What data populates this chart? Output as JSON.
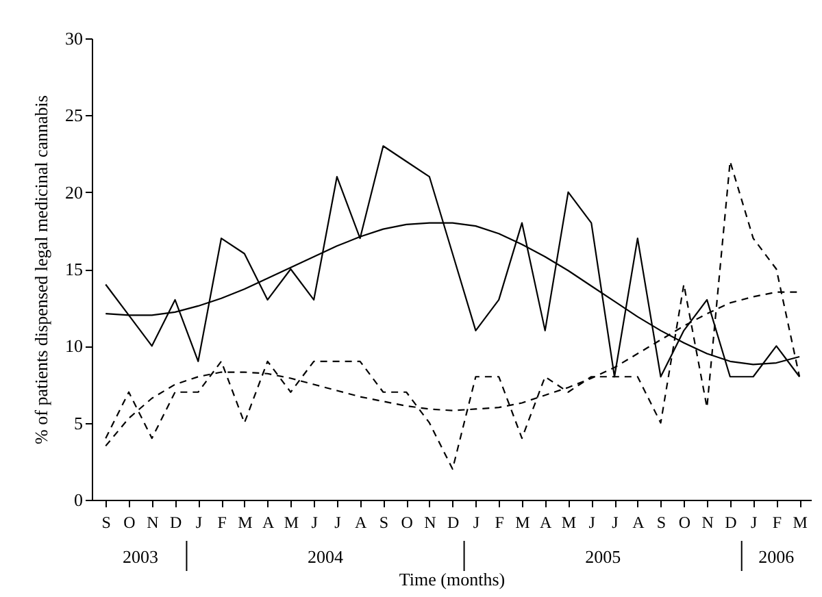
{
  "chart_data": {
    "type": "line",
    "xlabel": "Time (months)",
    "ylabel": "% of patients dispensed legal medicinal cannabis",
    "categories": [
      "S",
      "O",
      "N",
      "D",
      "J",
      "F",
      "M",
      "A",
      "M",
      "J",
      "J",
      "A",
      "S",
      "O",
      "N",
      "D",
      "J",
      "F",
      "M",
      "A",
      "M",
      "J",
      "J",
      "A",
      "S",
      "O",
      "N",
      "D",
      "J",
      "F",
      "M"
    ],
    "series": [
      {
        "color": "#000000",
        "line_style": "solid",
        "values": [
          14,
          12,
          10,
          13,
          9,
          17,
          16,
          13,
          15,
          13,
          21,
          17,
          23,
          22,
          21,
          16,
          11,
          13,
          18,
          11,
          20,
          18,
          8,
          17,
          8,
          11,
          13,
          8,
          8,
          10,
          8
        ]
      },
      {
        "color": "#000000",
        "line_style": "dashed",
        "values": [
          4,
          7,
          4,
          7,
          7,
          9,
          5,
          9,
          7,
          9,
          9,
          9,
          7,
          7,
          5,
          2,
          8,
          8,
          4,
          8,
          7,
          8,
          8,
          8,
          5,
          14,
          6,
          22,
          17,
          15,
          8
        ]
      },
      {
        "type": "line",
        "color": "#000000",
        "line_style": "solid",
        "values": [
          12.1,
          12.0,
          12.0,
          12.2,
          12.6,
          13.1,
          13.7,
          14.4,
          15.1,
          15.8,
          16.5,
          17.1,
          17.6,
          17.9,
          18.0,
          18.0,
          17.8,
          17.3,
          16.6,
          15.8,
          14.9,
          13.9,
          12.9,
          11.9,
          11.0,
          10.2,
          9.5,
          9.0,
          8.8,
          8.9,
          9.3
        ]
      },
      {
        "type": "line",
        "color": "#000000",
        "line_style": "dashed",
        "values": [
          3.5,
          5.3,
          6.6,
          7.5,
          8.0,
          8.3,
          8.3,
          8.2,
          7.9,
          7.5,
          7.1,
          6.7,
          6.4,
          6.1,
          5.9,
          5.8,
          5.9,
          6.0,
          6.3,
          6.8,
          7.3,
          7.9,
          8.6,
          9.5,
          10.4,
          11.3,
          12.1,
          12.8,
          13.2,
          13.5,
          13.5
        ]
      }
    ],
    "ylim": [
      0,
      30
    ],
    "yticks": [
      0,
      5,
      10,
      15,
      20,
      25,
      30
    ],
    "grid": false,
    "legend": false,
    "marker": "none",
    "annotations": [
      "2003",
      "2004",
      "2005",
      "2006"
    ]
  }
}
